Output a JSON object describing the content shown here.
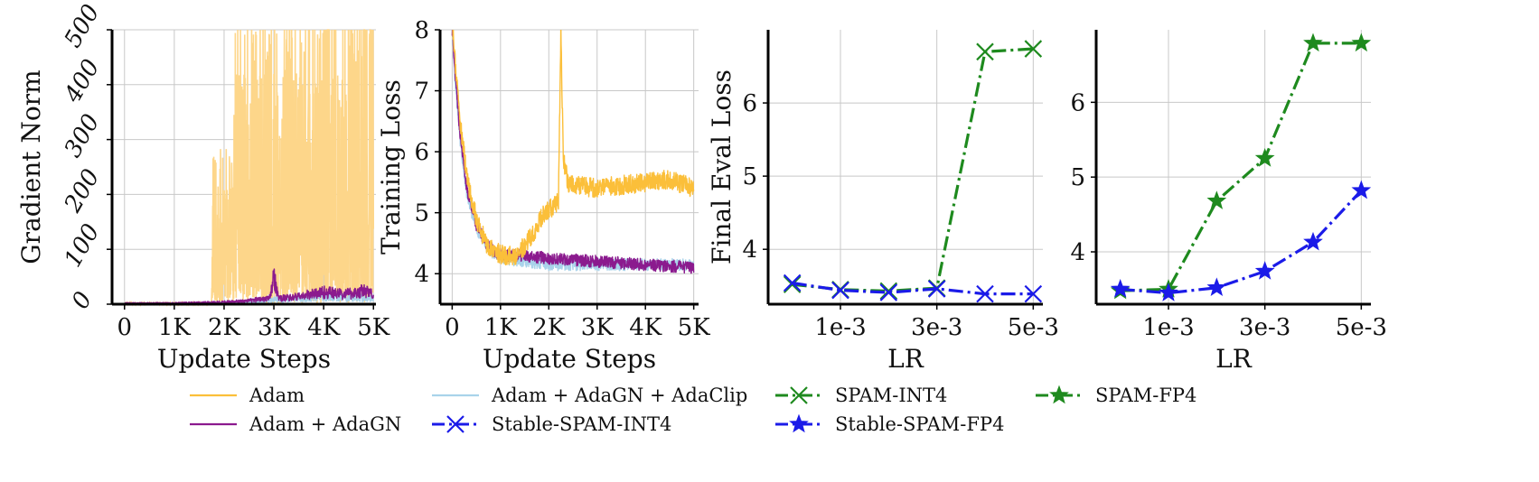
{
  "colors": {
    "adam": "#fbbf3a",
    "adam_fill": "#fdd68a",
    "adam_adagn": "#8b1a8e",
    "adam_adagn_adaclip": "#a9d3ea",
    "spam": "#1e8a1e",
    "stable_spam": "#1b1be8"
  },
  "legend": {
    "items": [
      {
        "label": "Adam",
        "style": "solid",
        "color": "#fbbf3a",
        "marker": "none"
      },
      {
        "label": "Adam + AdaGN + AdaClip",
        "style": "solid",
        "color": "#a9d3ea",
        "marker": "none"
      },
      {
        "label": "SPAM-INT4",
        "style": "dashdot",
        "color": "#1e8a1e",
        "marker": "x"
      },
      {
        "label": "SPAM-FP4",
        "style": "dashdot",
        "color": "#1e8a1e",
        "marker": "star"
      },
      {
        "label": "Adam + AdaGN",
        "style": "solid",
        "color": "#8b1a8e",
        "marker": "none"
      },
      {
        "label": "Stable-SPAM-INT4",
        "style": "dashdot",
        "color": "#1b1be8",
        "marker": "x"
      },
      {
        "label": "Stable-SPAM-FP4",
        "style": "dashdot",
        "color": "#1b1be8",
        "marker": "star"
      }
    ]
  },
  "chart_data": [
    {
      "type": "line",
      "xlabel": "Update Steps",
      "ylabel": "Gradient Norm",
      "xticks": [
        "0",
        "1K",
        "2K",
        "3K",
        "4K",
        "5K"
      ],
      "yticks": [
        "0",
        "100",
        "200",
        "300",
        "400",
        "500"
      ],
      "xlim": [
        -250,
        5050
      ],
      "ylim": [
        0,
        500
      ],
      "grid": true,
      "series": [
        {
          "name": "Adam",
          "note": "spiky, near 0 until ~1.8K steps, then frequent spikes up to 500 (clipped)"
        },
        {
          "name": "Adam + AdaGN",
          "points": [
            [
              0,
              2
            ],
            [
              1000,
              2
            ],
            [
              2000,
              4
            ],
            [
              2500,
              6
            ],
            [
              2900,
              12
            ],
            [
              3000,
              48
            ],
            [
              3100,
              10
            ],
            [
              3500,
              14
            ],
            [
              4000,
              22
            ],
            [
              4400,
              18
            ],
            [
              4800,
              24
            ],
            [
              5000,
              18
            ]
          ]
        },
        {
          "name": "Adam + AdaGN + AdaClip",
          "points": [
            [
              0,
              1
            ],
            [
              1000,
              1
            ],
            [
              2000,
              3
            ],
            [
              2500,
              4
            ],
            [
              3000,
              8
            ],
            [
              3500,
              10
            ],
            [
              4000,
              14
            ],
            [
              4500,
              12
            ],
            [
              5000,
              10
            ]
          ]
        }
      ]
    },
    {
      "type": "line",
      "xlabel": "Update Steps",
      "ylabel": "Training Loss",
      "xticks": [
        "0",
        "1K",
        "2K",
        "3K",
        "4K",
        "5K"
      ],
      "yticks": [
        "4",
        "5",
        "6",
        "7",
        "8"
      ],
      "xlim": [
        -250,
        5100
      ],
      "ylim": [
        3.5,
        8.0
      ],
      "grid": true,
      "series": [
        {
          "name": "Adam",
          "points": [
            [
              0,
              8.2
            ],
            [
              50,
              7.6
            ],
            [
              150,
              6.6
            ],
            [
              300,
              5.6
            ],
            [
              500,
              4.9
            ],
            [
              700,
              4.5
            ],
            [
              900,
              4.35
            ],
            [
              1100,
              4.3
            ],
            [
              1300,
              4.3
            ],
            [
              1500,
              4.45
            ],
            [
              1700,
              4.7
            ],
            [
              1800,
              4.85
            ],
            [
              1900,
              5.0
            ],
            [
              2000,
              5.05
            ],
            [
              2100,
              5.1
            ],
            [
              2200,
              5.2
            ],
            [
              2250,
              8.0
            ],
            [
              2300,
              5.9
            ],
            [
              2400,
              5.5
            ],
            [
              2600,
              5.45
            ],
            [
              3000,
              5.4
            ],
            [
              3500,
              5.45
            ],
            [
              4000,
              5.5
            ],
            [
              4500,
              5.55
            ],
            [
              5000,
              5.4
            ]
          ]
        },
        {
          "name": "Adam + AdaGN",
          "points": [
            [
              0,
              8.0
            ],
            [
              50,
              7.4
            ],
            [
              150,
              6.4
            ],
            [
              300,
              5.4
            ],
            [
              500,
              4.8
            ],
            [
              700,
              4.5
            ],
            [
              900,
              4.35
            ],
            [
              1100,
              4.3
            ],
            [
              1500,
              4.3
            ],
            [
              2000,
              4.25
            ],
            [
              3000,
              4.2
            ],
            [
              4000,
              4.15
            ],
            [
              5000,
              4.1
            ]
          ]
        },
        {
          "name": "Adam + AdaGN + AdaClip",
          "points": [
            [
              0,
              8.0
            ],
            [
              50,
              7.3
            ],
            [
              150,
              6.3
            ],
            [
              300,
              5.3
            ],
            [
              500,
              4.75
            ],
            [
              700,
              4.45
            ],
            [
              900,
              4.3
            ],
            [
              1100,
              4.25
            ],
            [
              1500,
              4.2
            ],
            [
              2000,
              4.15
            ],
            [
              3000,
              4.15
            ],
            [
              4000,
              4.15
            ],
            [
              5000,
              4.15
            ]
          ]
        }
      ]
    },
    {
      "type": "line",
      "xlabel": "LR",
      "ylabel": "Final Eval Loss",
      "xticks": [
        "1e-3",
        "3e-3",
        "5e-3"
      ],
      "yticks": [
        "4",
        "5",
        "6"
      ],
      "xlim": [
        -0.0005,
        0.0052
      ],
      "ylim": [
        3.25,
        7.0
      ],
      "grid": true,
      "series": [
        {
          "name": "SPAM-INT4",
          "x": [
            0.0,
            0.001,
            0.002,
            0.003,
            0.004,
            0.005
          ],
          "values": [
            3.52,
            3.45,
            3.43,
            3.47,
            6.7,
            6.74
          ]
        },
        {
          "name": "Stable-SPAM-INT4",
          "x": [
            0.0,
            0.001,
            0.002,
            0.003,
            0.004,
            0.005
          ],
          "values": [
            3.54,
            3.44,
            3.41,
            3.46,
            3.39,
            3.39
          ]
        }
      ]
    },
    {
      "type": "line",
      "xlabel": "LR",
      "ylabel": "",
      "xticks": [
        "1e-3",
        "3e-3",
        "5e-3"
      ],
      "yticks": [
        "4",
        "5",
        "6"
      ],
      "xlim": [
        -0.0005,
        0.0052
      ],
      "ylim": [
        3.3,
        6.97
      ],
      "grid": true,
      "series": [
        {
          "name": "SPAM-FP4",
          "x": [
            0.0,
            0.001,
            0.002,
            0.003,
            0.004,
            0.005
          ],
          "values": [
            3.48,
            3.5,
            4.68,
            5.25,
            6.79,
            6.79
          ]
        },
        {
          "name": "Stable-SPAM-FP4",
          "x": [
            0.0,
            0.001,
            0.002,
            0.003,
            0.004,
            0.005
          ],
          "values": [
            3.5,
            3.45,
            3.52,
            3.74,
            4.13,
            4.82
          ]
        }
      ]
    }
  ]
}
